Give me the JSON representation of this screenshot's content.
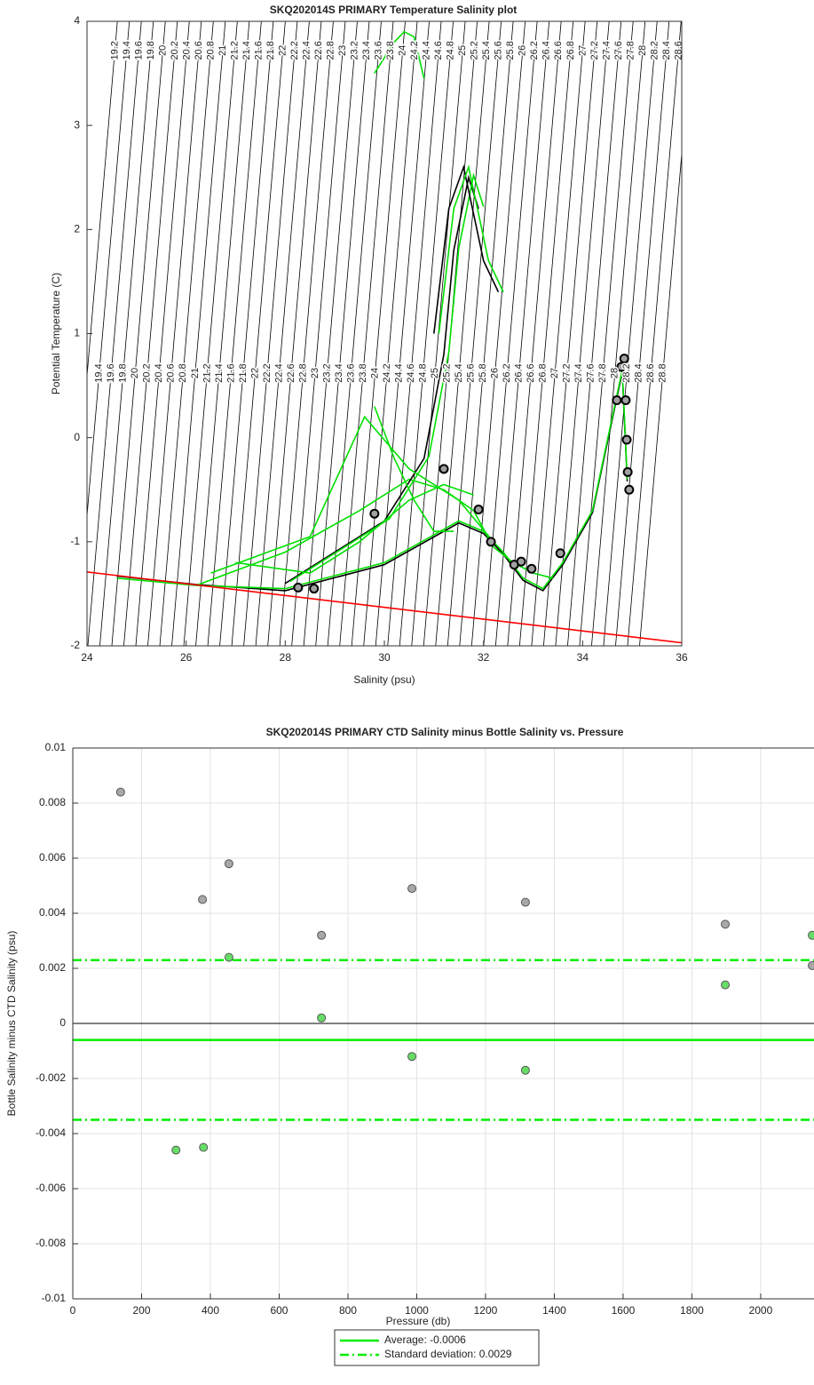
{
  "chart_data": [
    {
      "type": "line",
      "title": "SKQ202014S PRIMARY Temperature Salinity plot",
      "xlabel": "Salinity (psu)",
      "ylabel": "Potential Temperature (C)",
      "xlim": [
        24,
        36
      ],
      "ylim": [
        -2,
        4
      ],
      "xticks": [
        24,
        26,
        28,
        30,
        32,
        34,
        36
      ],
      "yticks": [
        -2,
        -1,
        0,
        1,
        2,
        3,
        4
      ],
      "contours": [
        19.2,
        19.4,
        19.6,
        19.8,
        20,
        20.2,
        20.4,
        20.6,
        20.8,
        21,
        21.2,
        21.4,
        21.6,
        21.8,
        22,
        22.2,
        22.4,
        22.6,
        22.8,
        23,
        23.2,
        23.4,
        23.6,
        23.8,
        24,
        24.2,
        24.4,
        24.6,
        24.8,
        25,
        25.2,
        25.4,
        25.6,
        25.8,
        26,
        26.2,
        26.4,
        26.6,
        26.8,
        27,
        27.2,
        27.4,
        27.6,
        27.8,
        28,
        28.2,
        28.4,
        28.6,
        28.8
      ],
      "contour_color": "#000000",
      "series": [
        {
          "color": "#000000",
          "x": [
            24.6,
            26.2,
            28,
            30,
            31.5,
            32,
            32.4,
            32.8,
            33.2,
            33.6,
            34.2,
            34.6,
            34.8,
            34.9
          ],
          "y": [
            -1.33,
            -1.41,
            -1.47,
            -1.22,
            -0.82,
            -0.92,
            -1.12,
            -1.37,
            -1.47,
            -1.22,
            -0.72,
            0.18,
            0.63,
            -0.42
          ]
        },
        {
          "color": "#00e000",
          "x": [
            24.6,
            26.2,
            28,
            30,
            31.5,
            32,
            32.4,
            32.8,
            33.2,
            33.6,
            34.2,
            34.6,
            34.8,
            34.9
          ],
          "y": [
            -1.35,
            -1.42,
            -1.45,
            -1.2,
            -0.8,
            -0.9,
            -1.1,
            -1.35,
            -1.45,
            -1.2,
            -0.7,
            0.2,
            0.65,
            -0.4
          ]
        },
        {
          "color": "#00e000",
          "x": [
            26.2,
            28,
            29.5,
            30.5,
            31.2,
            31.8,
            32.2,
            32.6,
            33,
            33.4
          ],
          "y": [
            -1.42,
            -1.1,
            -0.7,
            -0.4,
            -0.5,
            -0.7,
            -1.05,
            -1.2,
            -1.3,
            -1.35
          ]
        },
        {
          "color": "#000000",
          "x": [
            28,
            30,
            30.8,
            31.2,
            31.4,
            31.7,
            31.9
          ],
          "y": [
            -1.4,
            -0.8,
            -0.2,
            0.8,
            1.8,
            2.5,
            2.2
          ]
        },
        {
          "color": "#00e000",
          "x": [
            28.1,
            30.1,
            30.9,
            31.3,
            31.5,
            31.8,
            32
          ],
          "y": [
            -1.38,
            -0.78,
            -0.18,
            0.82,
            1.82,
            2.52,
            2.22
          ]
        },
        {
          "color": "#00e000",
          "x": [
            29.8,
            30.2,
            30.4,
            30.6,
            30.8
          ],
          "y": [
            3.5,
            3.8,
            3.9,
            3.85,
            3.45
          ]
        },
        {
          "color": "#00e000",
          "x": [
            26.5,
            28.5,
            29.6,
            30.5,
            31.5,
            32.2
          ],
          "y": [
            -1.3,
            -0.95,
            0.2,
            -0.3,
            -0.6,
            -1
          ]
        },
        {
          "color": "#000000",
          "x": [
            31,
            31.3,
            31.6,
            32,
            32.3
          ],
          "y": [
            1,
            2.2,
            2.6,
            1.7,
            1.4
          ]
        },
        {
          "color": "#00e000",
          "x": [
            31.1,
            31.4,
            31.7,
            32.1,
            32.4
          ],
          "y": [
            1,
            2.2,
            2.6,
            1.7,
            1.4
          ]
        },
        {
          "color": "#00e000",
          "x": [
            29.8,
            30.2,
            30.6,
            31,
            31.4
          ],
          "y": [
            0.3,
            -0.2,
            -0.6,
            -0.9,
            -0.9
          ]
        },
        {
          "color": "#00e000",
          "x": [
            27,
            28.5,
            29.5,
            30.5,
            31.2,
            31.8
          ],
          "y": [
            -1.2,
            -1.3,
            -1.0,
            -0.6,
            -0.45,
            -0.55
          ]
        },
        {
          "color": "#ff0000",
          "x": [
            24,
            36
          ],
          "y": [
            -1.29,
            -1.97
          ]
        }
      ],
      "points": {
        "color": "#a0a0a0",
        "x": [
          28.26,
          28.58,
          29.8,
          31.2,
          31.9,
          32.15,
          32.62,
          32.76,
          32.97,
          33.55,
          34.69,
          34.78,
          34.84,
          34.87,
          34.89,
          34.91,
          34.94
        ],
        "y": [
          -1.44,
          -1.45,
          -0.73,
          -0.3,
          -0.69,
          -1,
          -1.22,
          -1.19,
          -1.26,
          -1.11,
          0.36,
          0.68,
          0.76,
          0.36,
          -0.02,
          -0.33,
          -0.5
        ]
      }
    },
    {
      "type": "scatter",
      "title": "SKQ202014S PRIMARY CTD Salinity minus Bottle Salinity vs. Pressure",
      "xlabel": "Pressure (db)",
      "ylabel": "Bottle Salinity minus CTD Salinity (psu)",
      "xlim": [
        0,
        2155
      ],
      "ylim": [
        -0.01,
        0.01
      ],
      "xticks": [
        0,
        200,
        400,
        600,
        800,
        1000,
        1200,
        1400,
        1600,
        1800,
        2000
      ],
      "yticks": [
        -0.01,
        -0.008,
        -0.006,
        -0.004,
        -0.002,
        0,
        0.002,
        0.004,
        0.006,
        0.008,
        0.01
      ],
      "grid": true,
      "series": [
        {
          "color": "#a8a8a8",
          "x": [
            139,
            377,
            454,
            723,
            986,
            1316,
            1897,
            2150
          ],
          "values": [
            0.0084,
            0.0045,
            0.0058,
            0.0032,
            0.0049,
            0.0044,
            0.0036,
            0.0021
          ]
        },
        {
          "color": "#66dd66",
          "x": [
            300,
            380,
            454,
            723,
            986,
            1316,
            1897,
            2150
          ],
          "values": [
            -0.0046,
            -0.0045,
            0.0024,
            0.0002,
            -0.0012,
            -0.0017,
            0.0014,
            0.0032
          ]
        }
      ],
      "reference_lines": [
        {
          "value": 0,
          "color": "#000000",
          "style": "solid"
        },
        {
          "value": -0.0006,
          "color": "#00ee00",
          "style": "solid",
          "label": "Average: -0.0006"
        },
        {
          "value": 0.0023,
          "color": "#00ee00",
          "style": "dashdot",
          "label": "Standard deviation: 0.0029"
        },
        {
          "value": -0.0035,
          "color": "#00ee00",
          "style": "dashdot"
        }
      ]
    }
  ]
}
